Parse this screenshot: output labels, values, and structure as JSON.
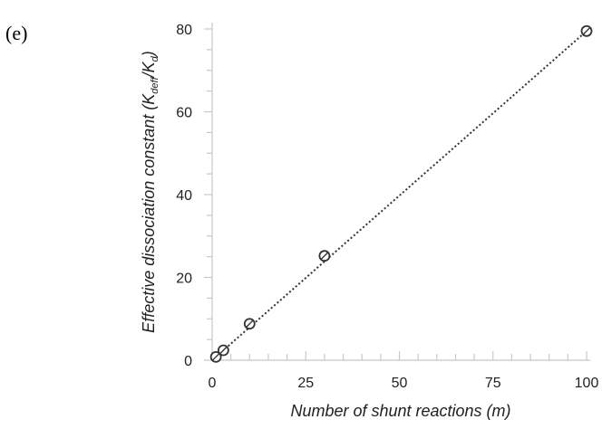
{
  "panel_label": "(e)",
  "chart_data": {
    "type": "scatter",
    "title": "",
    "xlabel": "Number of shunt reactions (m)",
    "ylabel": {
      "prefix": "Effective dissociation constant (K",
      "sub1": "deff",
      "mid": "/K",
      "sub2": "d",
      "suffix": ")"
    },
    "xlim": [
      0,
      100
    ],
    "ylim": [
      0,
      80
    ],
    "xticks": [
      0,
      25,
      50,
      75,
      100
    ],
    "yticks": [
      0,
      20,
      40,
      60,
      80
    ],
    "grid": false,
    "points": [
      {
        "x": 1,
        "y": 0.8
      },
      {
        "x": 3,
        "y": 2.4
      },
      {
        "x": 10,
        "y": 8.8
      },
      {
        "x": 30,
        "y": 25.2
      },
      {
        "x": 100,
        "y": 79.5
      }
    ],
    "fit_line": {
      "x": [
        1,
        100
      ],
      "y": [
        0.8,
        79.5
      ],
      "style": "dotted"
    }
  }
}
